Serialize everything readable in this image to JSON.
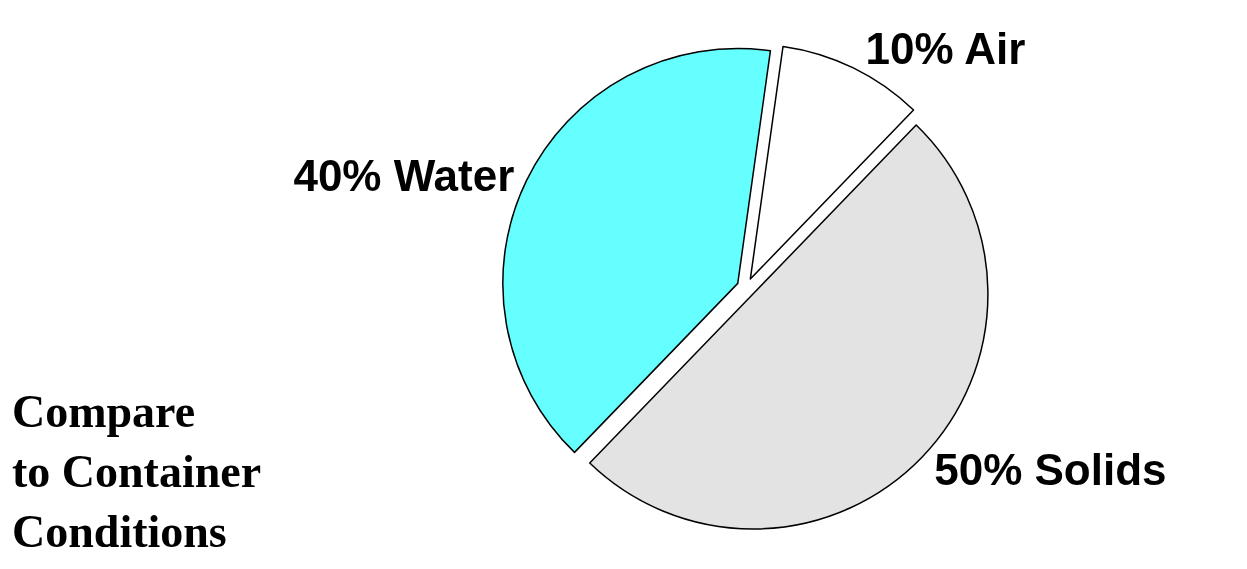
{
  "chart_data": {
    "type": "pie",
    "categories": [
      "Water",
      "Air",
      "Solids"
    ],
    "values": [
      40,
      10,
      50
    ],
    "colors": [
      "#66ffff",
      "#ffffff",
      "#e3e3e3"
    ],
    "value_labels": [
      "40%",
      "10%",
      "50%"
    ],
    "annotations": [
      "Compare\nto Container\nConditions"
    ],
    "legend": false
  }
}
